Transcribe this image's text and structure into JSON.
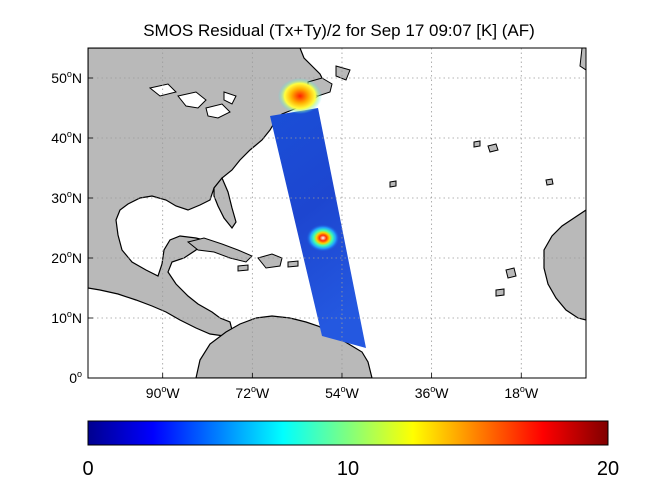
{
  "title": "SMOS Residual (Tx+Ty)/2 for Sep 17 09:07 [K] (AF)",
  "map": {
    "lat_ticks": [
      {
        "deg": "0",
        "hemi": "",
        "lat": 0
      },
      {
        "deg": "10",
        "hemi": "N",
        "lat": 10
      },
      {
        "deg": "20",
        "hemi": "N",
        "lat": 20
      },
      {
        "deg": "30",
        "hemi": "N",
        "lat": 30
      },
      {
        "deg": "40",
        "hemi": "N",
        "lat": 40
      },
      {
        "deg": "50",
        "hemi": "N",
        "lat": 50
      }
    ],
    "lon_ticks": [
      {
        "deg": "90",
        "hemi": "W",
        "lon": -90
      },
      {
        "deg": "72",
        "hemi": "W",
        "lon": -72
      },
      {
        "deg": "54",
        "hemi": "W",
        "lon": -54
      },
      {
        "deg": "36",
        "hemi": "W",
        "lon": -36
      },
      {
        "deg": "18",
        "hemi": "W",
        "lon": -18
      }
    ],
    "degree_symbol": "o",
    "lon_range": [
      -105,
      -5
    ],
    "lat_range": [
      0,
      55
    ],
    "land_color": "#b9b9b9",
    "grid": "dotted"
  },
  "colorbar": {
    "min_label": "0",
    "mid_label": "10",
    "max_label": "20",
    "range": [
      0,
      20
    ],
    "colormap": "jet"
  }
}
